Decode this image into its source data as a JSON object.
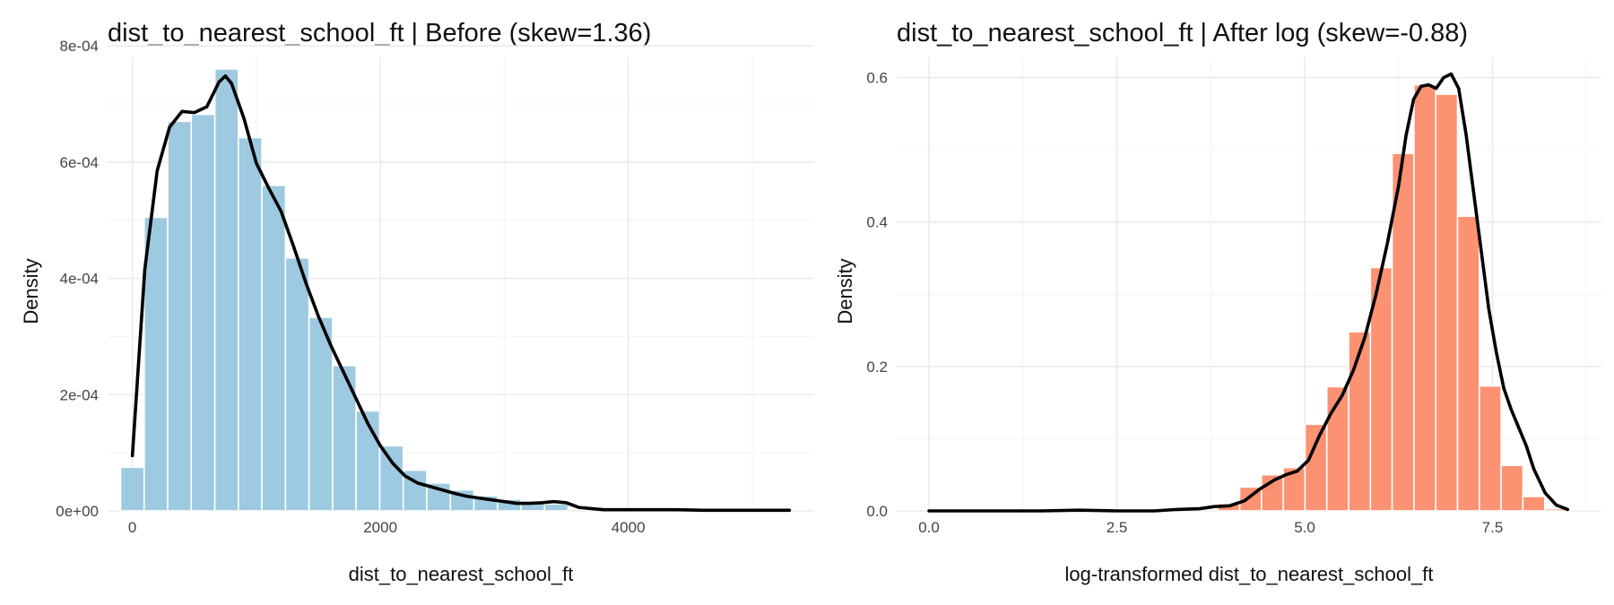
{
  "chart_data": [
    {
      "type": "bar",
      "title": "dist_to_nearest_school_ft | Before (skew=1.36)",
      "xlabel": "dist_to_nearest_school_ft",
      "ylabel": "Density",
      "xlim": [
        -200,
        5500
      ],
      "ylim": [
        0,
        0.00078
      ],
      "grid": true,
      "bar_color": "#9ecae1",
      "x_ticks": [
        {
          "value": 0,
          "label": "0"
        },
        {
          "value": 2000,
          "label": "2000"
        },
        {
          "value": 4000,
          "label": "4000"
        }
      ],
      "y_ticks": [
        {
          "value": 0,
          "label": "0e+00"
        },
        {
          "value": 0.0002,
          "label": "2e-04"
        },
        {
          "value": 0.0004,
          "label": "4e-04"
        },
        {
          "value": 0.0006,
          "label": "6e-04"
        },
        {
          "value": 0.0008,
          "label": "8e-04"
        }
      ],
      "bin_width": 190,
      "bin_centers": [
        0,
        190,
        380,
        570,
        760,
        950,
        1140,
        1330,
        1520,
        1710,
        1900,
        2090,
        2280,
        2470,
        2660,
        2850,
        3040,
        3230,
        3420
      ],
      "values": [
        7.5e-05,
        0.000505,
        0.00067,
        0.000682,
        0.00076,
        0.000642,
        0.00056,
        0.000435,
        0.000333,
        0.00025,
        0.000172,
        0.000112,
        7e-05,
        4.8e-05,
        3.6e-05,
        2.6e-05,
        2e-05,
        1.4e-05,
        1.2e-05
      ],
      "density_curve": {
        "x": [
          0,
          100,
          200,
          300,
          400,
          500,
          600,
          700,
          750,
          800,
          900,
          1000,
          1100,
          1200,
          1300,
          1400,
          1500,
          1600,
          1700,
          1800,
          1900,
          2000,
          2100,
          2200,
          2300,
          2400,
          2500,
          2600,
          2700,
          2800,
          2900,
          3000,
          3100,
          3200,
          3300,
          3400,
          3500,
          3600,
          3800,
          4000,
          4200,
          4400,
          4600,
          4800,
          5000,
          5300
        ],
        "y": [
          9.5e-05,
          0.000415,
          0.000585,
          0.00066,
          0.000687,
          0.000685,
          0.000695,
          0.000738,
          0.000748,
          0.000735,
          0.000675,
          0.000598,
          0.000555,
          0.000515,
          0.000455,
          0.000392,
          0.000335,
          0.000285,
          0.00024,
          0.000195,
          0.00015,
          0.000112,
          8.2e-05,
          6e-05,
          4.8e-05,
          4.2e-05,
          3.6e-05,
          3e-05,
          2.5e-05,
          2.2e-05,
          1.9e-05,
          1.6e-05,
          1.3e-05,
          1.3e-05,
          1.4e-05,
          1.6e-05,
          1.4e-05,
          6e-06,
          2e-06,
          2e-06,
          2e-06,
          2e-06,
          1e-06,
          1e-06,
          1e-06,
          1e-06
        ]
      }
    },
    {
      "type": "bar",
      "title": "dist_to_nearest_school_ft | After log (skew=-0.88)",
      "xlabel": "log-transformed dist_to_nearest_school_ft",
      "ylabel": "Density",
      "xlim": [
        -0.43,
        8.95
      ],
      "ylim": [
        0,
        0.628
      ],
      "grid": true,
      "bar_color": "#fc9272",
      "x_ticks": [
        {
          "value": 0,
          "label": "0.0"
        },
        {
          "value": 2.5,
          "label": "2.5"
        },
        {
          "value": 5,
          "label": "5.0"
        },
        {
          "value": 7.5,
          "label": "7.5"
        }
      ],
      "y_ticks": [
        {
          "value": 0,
          "label": "0.0"
        },
        {
          "value": 0.2,
          "label": "0.2"
        },
        {
          "value": 0.4,
          "label": "0.4"
        },
        {
          "value": 0.6,
          "label": "0.6"
        }
      ],
      "bin_width": 0.29,
      "bin_centers": [
        3.99,
        4.28,
        4.57,
        4.86,
        5.15,
        5.44,
        5.73,
        6.02,
        6.31,
        6.6,
        6.89,
        7.18,
        7.47,
        7.76,
        8.05,
        8.34
      ],
      "values": [
        0.01,
        0.033,
        0.05,
        0.06,
        0.12,
        0.172,
        0.248,
        0.337,
        0.495,
        0.59,
        0.577,
        0.408,
        0.173,
        0.063,
        0.02,
        0.003
      ],
      "density_curve": {
        "x": [
          0,
          0.5,
          1,
          1.5,
          2,
          2.5,
          3,
          3.3,
          3.6,
          3.8,
          4.0,
          4.2,
          4.4,
          4.6,
          4.75,
          4.9,
          5.05,
          5.2,
          5.35,
          5.5,
          5.65,
          5.8,
          5.95,
          6.1,
          6.25,
          6.35,
          6.45,
          6.55,
          6.65,
          6.75,
          6.85,
          6.95,
          7.05,
          7.15,
          7.25,
          7.35,
          7.45,
          7.55,
          7.65,
          7.75,
          7.85,
          7.95,
          8.05,
          8.2,
          8.35,
          8.5
        ],
        "y": [
          0,
          0,
          0,
          0,
          0.001,
          0,
          0,
          0.002,
          0.003,
          0.006,
          0.007,
          0.014,
          0.03,
          0.043,
          0.05,
          0.055,
          0.07,
          0.105,
          0.135,
          0.16,
          0.195,
          0.24,
          0.3,
          0.37,
          0.45,
          0.52,
          0.57,
          0.588,
          0.59,
          0.585,
          0.6,
          0.605,
          0.585,
          0.52,
          0.44,
          0.36,
          0.28,
          0.22,
          0.17,
          0.14,
          0.115,
          0.09,
          0.058,
          0.025,
          0.008,
          0.002
        ]
      }
    }
  ]
}
